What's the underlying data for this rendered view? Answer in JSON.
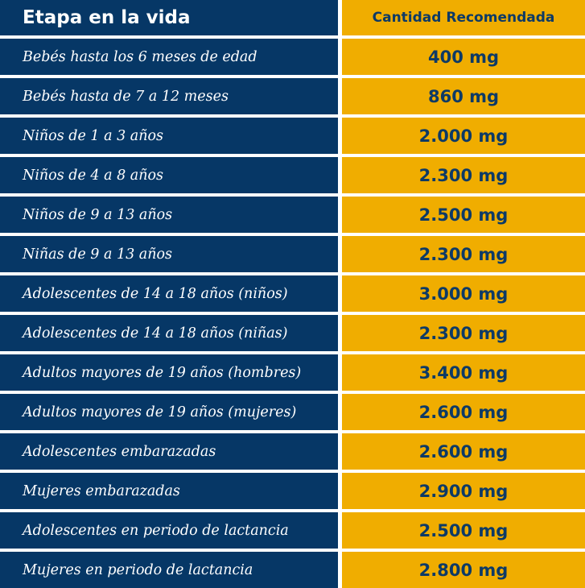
{
  "header": {
    "stage": "Etapa en la vida",
    "amount": "Cantidad Recomendada"
  },
  "rows": [
    {
      "stage": "Bebés hasta los 6 meses de edad",
      "amount": "400 mg"
    },
    {
      "stage": "Bebés hasta de 7 a 12 meses",
      "amount": "860 mg"
    },
    {
      "stage": "Niños de 1 a 3 años",
      "amount": "2.000 mg"
    },
    {
      "stage": "Niños de 4 a 8 años",
      "amount": "2.300 mg"
    },
    {
      "stage": "Niños de 9 a 13 años",
      "amount": "2.500 mg"
    },
    {
      "stage": "Niñas de 9 a 13 años",
      "amount": "2.300 mg"
    },
    {
      "stage": "Adolescentes de 14 a 18 años (niños)",
      "amount": "3.000 mg"
    },
    {
      "stage": "Adolescentes de 14 a 18 años (niñas)",
      "amount": "2.300 mg"
    },
    {
      "stage": "Adultos mayores de 19 años (hombres)",
      "amount": "3.400 mg"
    },
    {
      "stage": "Adultos mayores de 19 años (mujeres)",
      "amount": "2.600 mg"
    },
    {
      "stage": "Adolescentes embarazadas",
      "amount": "2.600 mg"
    },
    {
      "stage": "Mujeres embarazadas",
      "amount": "2.900 mg"
    },
    {
      "stage": "Adolescentes en periodo de lactancia",
      "amount": "2.500 mg"
    },
    {
      "stage": "Mujeres en periodo de lactancia",
      "amount": "2.800 mg"
    }
  ],
  "colors": {
    "stage_background": "#063766",
    "amount_background": "#f0ad00",
    "stage_text": "#ffffff",
    "amount_text": "#0d3a66"
  }
}
